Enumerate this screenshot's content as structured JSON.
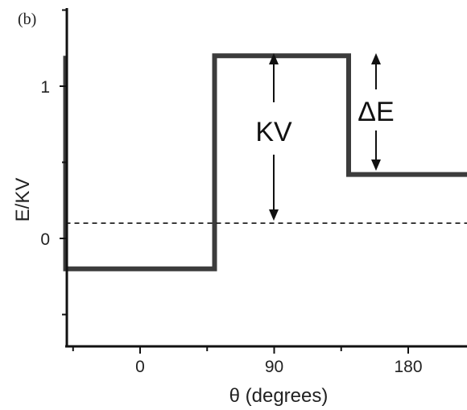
{
  "chart_data": {
    "type": "line",
    "panel_label": "(b)",
    "xlabel": "θ (degrees)",
    "ylabel": "E/KV",
    "xlim": [
      -55,
      240
    ],
    "ylim": [
      -0.7,
      1.55
    ],
    "xticks": [
      0,
      90,
      180
    ],
    "xtick_labels": [
      "0",
      "90",
      "180"
    ],
    "yticks": [
      1,
      0
    ],
    "ytick_labels": [
      "1",
      "0"
    ],
    "series": [
      {
        "style": "solid-thick",
        "color": "#3c3c3c",
        "x": [
          -50,
          -50,
          -50,
          50,
          50,
          140,
          140,
          140,
          240
        ],
        "y": [
          1.2,
          -0.2,
          -0.2,
          -0.2,
          1.2,
          1.2,
          1.05,
          0.42,
          0.42
        ]
      },
      {
        "style": "dashed",
        "color": "#111111",
        "x": [
          -50,
          50,
          50,
          140,
          140,
          240
        ],
        "y": [
          0.1,
          0.1,
          0.1,
          0.1,
          0.1,
          0.1
        ]
      }
    ],
    "annotations": [
      {
        "text": "KV",
        "x": 110,
        "y": 0.7
      },
      {
        "text": "ΔE",
        "x": 170,
        "y": 0.86
      }
    ]
  }
}
